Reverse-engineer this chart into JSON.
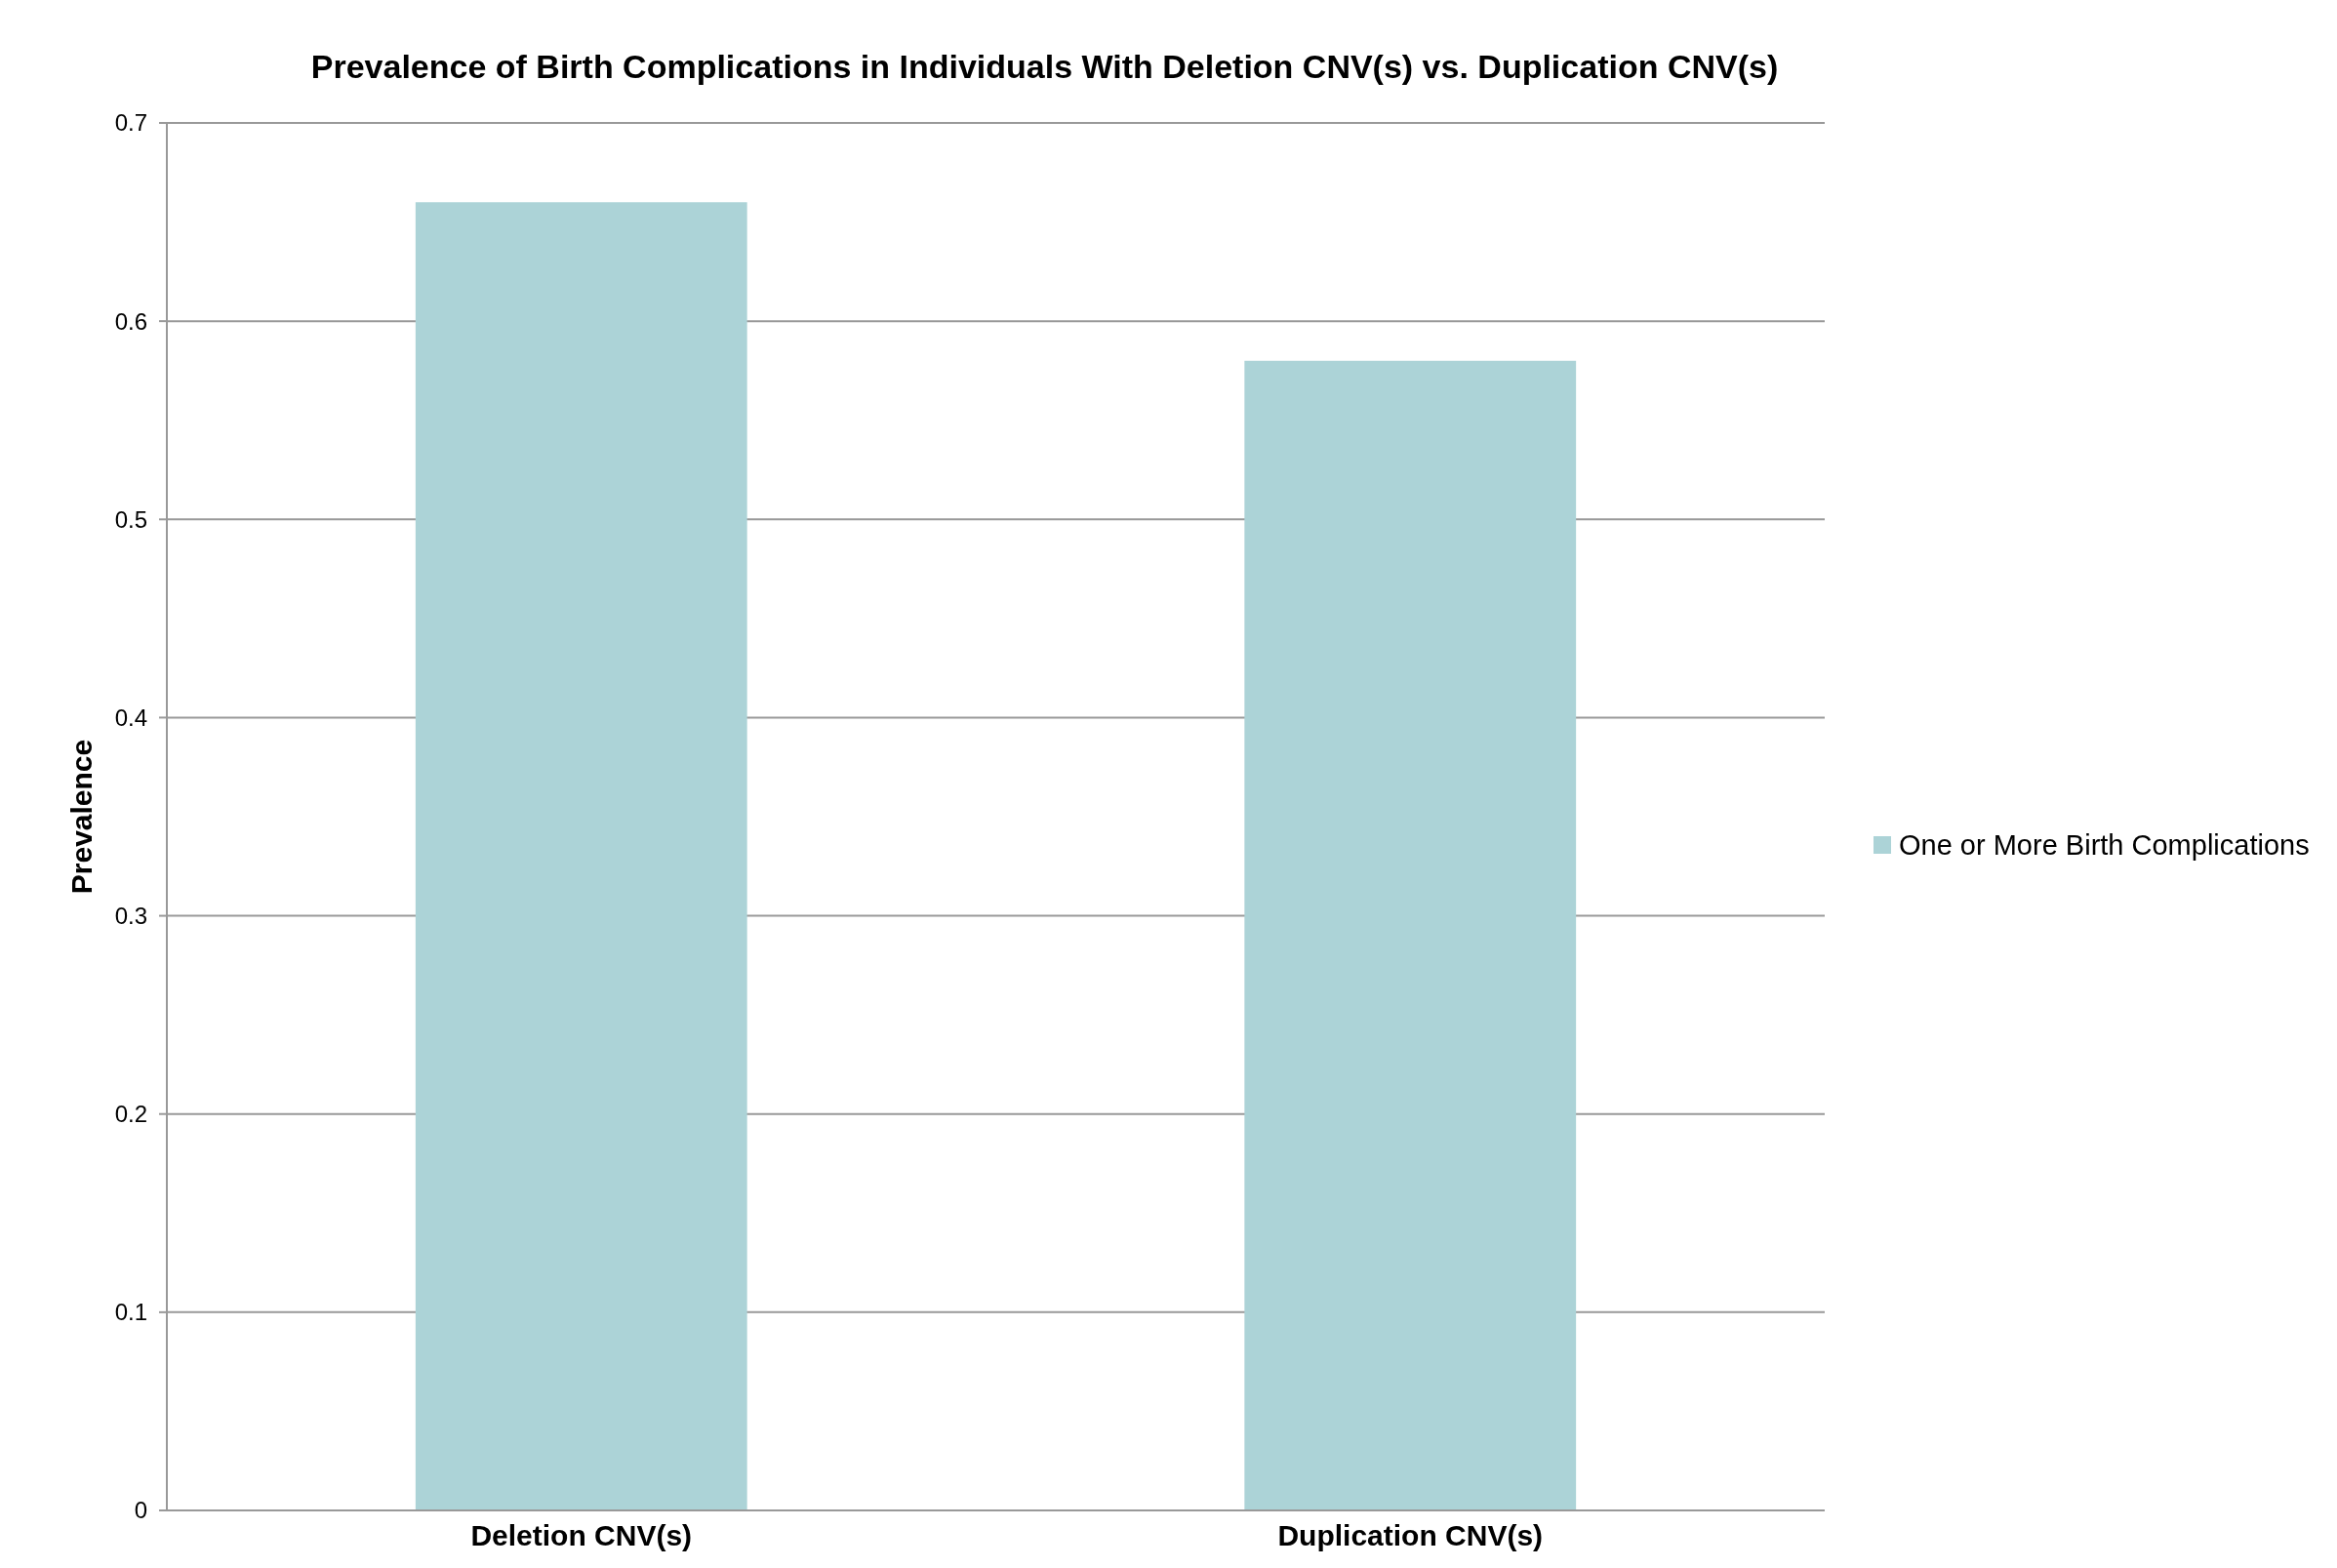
{
  "chart_data": {
    "type": "bar",
    "title": "Prevalence of Birth Complications in Individuals With Deletion CNV(s) vs. Duplication CNV(s)",
    "ylabel": "Prevalence",
    "categories": [
      "Deletion CNV(s)",
      "Duplication CNV(s)"
    ],
    "series": [
      {
        "name": "One or More Birth Complications",
        "color": "#acd3d7",
        "values": [
          0.66,
          0.58
        ]
      }
    ],
    "ylim": [
      0,
      0.7
    ],
    "yticks": [
      0,
      0.1,
      0.2,
      0.3,
      0.4,
      0.5,
      0.6,
      0.7
    ],
    "grid": "y",
    "legend": "right"
  }
}
